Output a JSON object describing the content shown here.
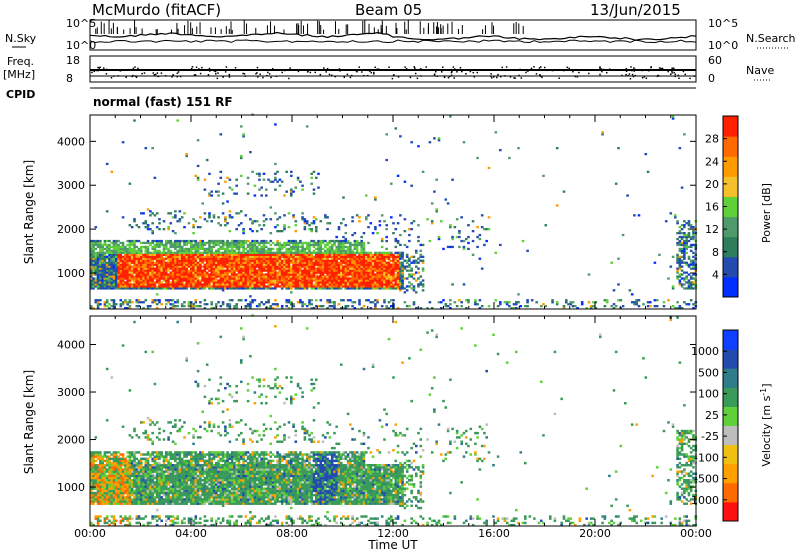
{
  "header": {
    "station": "McMurdo (fitACF)",
    "beam": "Beam 05",
    "date": "13/Jun/2015"
  },
  "aux_panels": {
    "nsky_label": "N.Sky",
    "nsky_ticks": [
      "10^5",
      "10^0"
    ],
    "nsearch_label": "N.Search",
    "nsearch_ticks": [
      "10^5",
      "10^0"
    ],
    "freq_label": "Freq.",
    "freq_unit": "[MHz]",
    "freq_ticks": [
      "18",
      "8"
    ],
    "nave_label": "Nave",
    "nave_ticks": [
      "60",
      "0"
    ],
    "cpid_label": "CPID",
    "cpid_value": "normal (fast) 151 RF"
  },
  "colors": {
    "power_scale": [
      "#0030ff",
      "#234bb0",
      "#2e7d5c",
      "#4f9a6a",
      "#5fcf3a",
      "#f5c02a",
      "#ff9a00",
      "#ff6a00",
      "#ff2000"
    ],
    "velocity_scale": [
      "#ff1010",
      "#ff6a00",
      "#ffa000",
      "#f0c010",
      "#bdbdbd",
      "#5fcf3a",
      "#3a9a5a",
      "#2e7d8a",
      "#234bb0",
      "#1040ff"
    ]
  },
  "chart_data": [
    {
      "type": "heatmap",
      "name": "power",
      "ylabel": "Slant Range [km]",
      "xlabel": "",
      "xticks": [
        "00:00",
        "04:00",
        "08:00",
        "12:00",
        "16:00",
        "20:00",
        "00:00"
      ],
      "yticks": [
        "1000",
        "2000",
        "3000",
        "4000"
      ],
      "ylim": [
        180,
        4600
      ],
      "xlim_hours": [
        0,
        24
      ],
      "colorbar_label": "Power [dB]",
      "colorbar_ticks": [
        "4",
        "8",
        "12",
        "16",
        "20",
        "24",
        "28"
      ],
      "colorbar_range": [
        0,
        32
      ]
    },
    {
      "type": "heatmap",
      "name": "velocity",
      "ylabel": "Slant Range [km]",
      "xlabel": "Time UT",
      "xticks": [
        "00:00",
        "04:00",
        "08:00",
        "12:00",
        "16:00",
        "20:00",
        "00:00"
      ],
      "yticks": [
        "1000",
        "2000",
        "3000",
        "4000"
      ],
      "ylim": [
        180,
        4600
      ],
      "xlim_hours": [
        0,
        24
      ],
      "colorbar_label": "Velocity [m s",
      "colorbar_label_sup": "-1",
      "colorbar_label_end": "]",
      "colorbar_ticks": [
        "1000",
        "500",
        "100",
        "25",
        "-25",
        "-100",
        "-500",
        "-1000"
      ]
    }
  ]
}
